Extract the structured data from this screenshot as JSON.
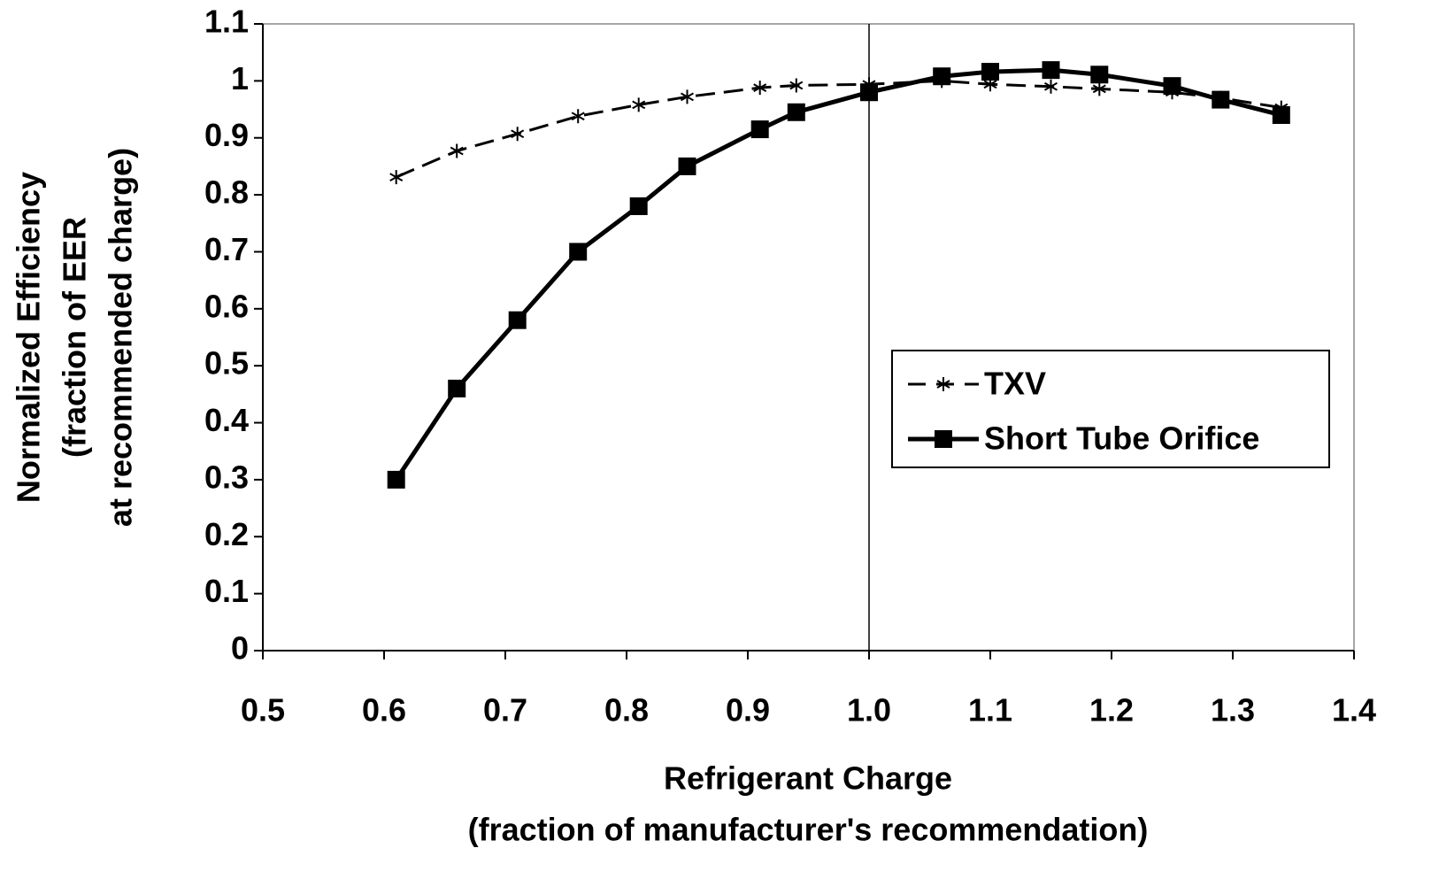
{
  "chart_data": {
    "type": "line",
    "x_label": [
      "Refrigerant Charge",
      "(fraction of manufacturer's recommendation)"
    ],
    "y_label": [
      "Normalized Efficiency",
      "(fraction of EER",
      "at recommended charge)"
    ],
    "x": [
      0.61,
      0.66,
      0.71,
      0.76,
      0.81,
      0.85,
      0.91,
      0.94,
      1.0,
      1.06,
      1.1,
      1.15,
      1.19,
      1.25,
      1.29,
      1.34
    ],
    "series": [
      {
        "name": "TXV",
        "color": "#000000",
        "style": "dashed",
        "marker": "asterisk",
        "values": [
          0.831,
          0.877,
          0.907,
          0.938,
          0.958,
          0.972,
          0.988,
          0.992,
          0.994,
          1.0,
          0.994,
          0.99,
          0.986,
          0.98,
          0.97,
          0.953
        ]
      },
      {
        "name": "Short Tube Orifice",
        "color": "#000000",
        "style": "solid",
        "marker": "square",
        "values": [
          0.3,
          0.46,
          0.58,
          0.7,
          0.78,
          0.85,
          0.915,
          0.945,
          0.98,
          1.008,
          1.016,
          1.019,
          1.011,
          0.991,
          0.967,
          0.94
        ]
      }
    ],
    "reference_line_x": 1,
    "xlim": [
      0.5,
      1.4
    ],
    "xticks": [
      0.5,
      0.6,
      0.7,
      0.8,
      0.9,
      {
        "value": 1,
        "label": "1.0"
      },
      1.1,
      1.2,
      1.3,
      1.4
    ],
    "ylim": [
      0,
      1.1
    ],
    "yticks": [
      0,
      0.1,
      0.2,
      0.3,
      0.4,
      0.5,
      0.6,
      0.7,
      0.8,
      0.9,
      1,
      1.1
    ],
    "grid": false,
    "legend": "right"
  }
}
